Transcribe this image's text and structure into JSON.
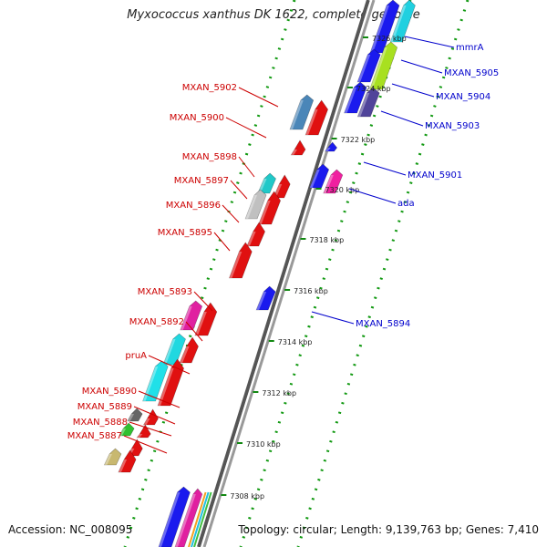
{
  "header": {
    "title": "Myxococcus xanthus DK 1622, complete genome"
  },
  "footer": {
    "accession": "Accession: NC_008095",
    "info": "Topology: circular; Length: 9,139,763 bp; Genes: 7,410"
  },
  "colors": {
    "reverse_label": "#cc0000",
    "forward_label": "#0000cc",
    "backbone": "#888888",
    "tick_dots": "#119911"
  },
  "kbp_ticks": [
    {
      "label": "7326 kbp",
      "pos": 7326
    },
    {
      "label": "7324 kbp",
      "pos": 7324
    },
    {
      "label": "7322 kbp",
      "pos": 7322
    },
    {
      "label": "7320 kbp",
      "pos": 7320
    },
    {
      "label": "7318 kbp",
      "pos": 7318
    },
    {
      "label": "7316 kbp",
      "pos": 7316
    },
    {
      "label": "7314 kbp",
      "pos": 7314
    },
    {
      "label": "7312 kbp",
      "pos": 7312
    },
    {
      "label": "7310 kbp",
      "pos": 7310
    },
    {
      "label": "7308 kbp",
      "pos": 7308
    }
  ],
  "reverse_genes": [
    {
      "name": "MXAN_5902",
      "color": "#e01010"
    },
    {
      "name": "MXAN_5900",
      "color": "#e01010"
    },
    {
      "name": "MXAN_5898",
      "color": "#e01010"
    },
    {
      "name": "MXAN_5897",
      "color": "#e01010"
    },
    {
      "name": "MXAN_5896",
      "color": "#e01010"
    },
    {
      "name": "MXAN_5895",
      "color": "#e01010"
    },
    {
      "name": "MXAN_5893",
      "color": "#e01010"
    },
    {
      "name": "MXAN_5892",
      "color": "#e01010"
    },
    {
      "name": "pruA",
      "color": "#e01010"
    },
    {
      "name": "MXAN_5890",
      "color": "#e01010"
    },
    {
      "name": "MXAN_5889",
      "color": "#e01010"
    },
    {
      "name": "MXAN_5888",
      "color": "#e01010"
    },
    {
      "name": "MXAN_5887",
      "color": "#e01010"
    }
  ],
  "forward_genes": [
    {
      "name": "mmrA",
      "color": "#1010e0"
    },
    {
      "name": "MXAN_5905",
      "color": "#1010e0"
    },
    {
      "name": "MXAN_5904",
      "color": "#1010e0"
    },
    {
      "name": "MXAN_5903",
      "color": "#1010e0"
    },
    {
      "name": "MXAN_5901",
      "color": "#1010e0"
    },
    {
      "name": "ada",
      "color": "#1010e0"
    },
    {
      "name": "MXAN_5894",
      "color": "#1010e0"
    }
  ]
}
